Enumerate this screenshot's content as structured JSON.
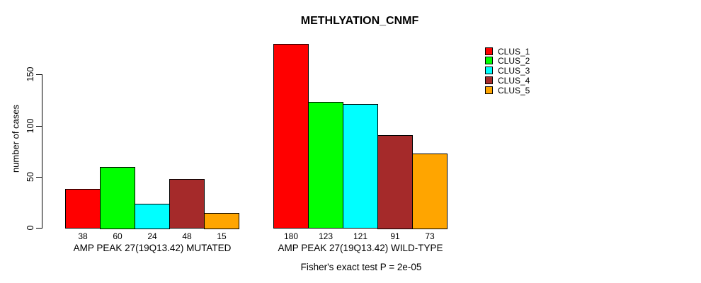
{
  "chart_data": {
    "type": "bar",
    "title": "METHLYATION_CNMF",
    "ylabel": "number of cases",
    "ylim": [
      0,
      150
    ],
    "yticks": [
      0,
      50,
      100,
      150
    ],
    "grid": false,
    "legend_position": "top-right",
    "categories": [
      "AMP PEAK 27(19Q13.42) MUTATED",
      "AMP PEAK 27(19Q13.42) WILD-TYPE"
    ],
    "series": [
      {
        "name": "CLUS_1",
        "color": "#FF0000",
        "values": [
          38,
          180
        ]
      },
      {
        "name": "CLUS_2",
        "color": "#00FF00",
        "values": [
          60,
          123
        ]
      },
      {
        "name": "CLUS_3",
        "color": "#00FFFF",
        "values": [
          24,
          121
        ]
      },
      {
        "name": "CLUS_4",
        "color": "#A52A2A",
        "values": [
          48,
          91
        ]
      },
      {
        "name": "CLUS_5",
        "color": "#FFA500",
        "values": [
          15,
          73
        ]
      }
    ],
    "annotation": "Fisher's exact test P = 2e-05"
  }
}
